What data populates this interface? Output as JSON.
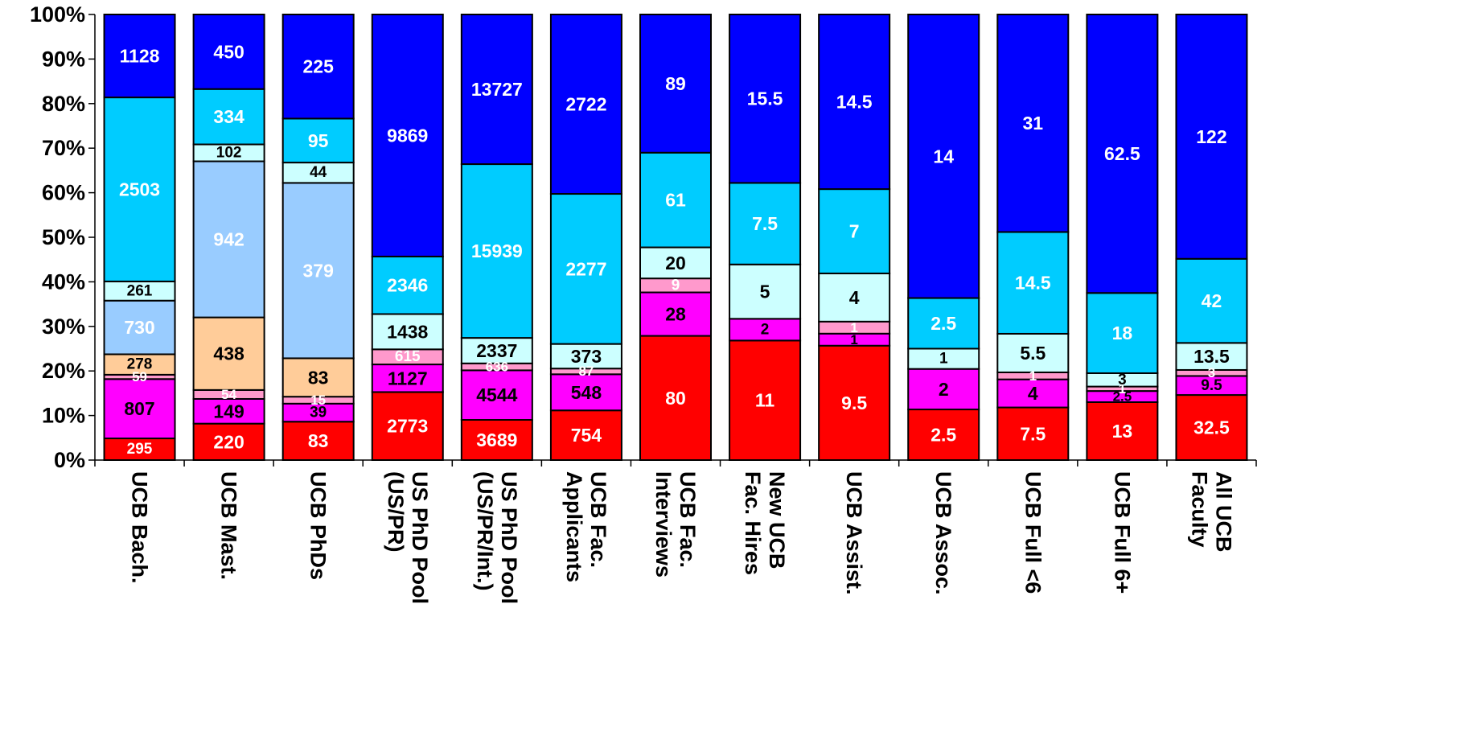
{
  "chart_data": {
    "type": "bar",
    "stacked": "percent",
    "title": "",
    "xlabel": "",
    "ylabel": "",
    "ylim": [
      0,
      100
    ],
    "y_ticks": [
      "0%",
      "10%",
      "20%",
      "30%",
      "40%",
      "50%",
      "60%",
      "70%",
      "80%",
      "90%",
      "100%"
    ],
    "grid": false,
    "legend": "none",
    "categories": [
      [
        "UCB Bach."
      ],
      [
        "UCB Mast."
      ],
      [
        "UCB PhDs"
      ],
      [
        "US PhD Pool",
        "(US/PR)"
      ],
      [
        "US PhD Pool",
        "(US/PR/Int.)"
      ],
      [
        "UCB Fac.",
        "Applicants"
      ],
      [
        "UCB Fac.",
        "Interviews"
      ],
      [
        "New UCB",
        "Fac. Hires"
      ],
      [
        "UCB Assist."
      ],
      [
        "UCB Assoc."
      ],
      [
        "UCB Full <6"
      ],
      [
        "UCB Full 6+"
      ],
      [
        "All UCB",
        "Faculty"
      ]
    ],
    "series": [
      {
        "color": "#ff0000",
        "label_color": "#ffffff",
        "values": [
          295,
          220,
          83,
          2773,
          3689,
          754,
          80,
          11,
          9.5,
          2.5,
          7.5,
          13,
          32.5
        ]
      },
      {
        "color": "#ff00ff",
        "label_color": "#000000",
        "values": [
          807,
          149,
          39,
          1127,
          4544,
          548,
          28,
          2,
          1,
          2,
          4,
          2.5,
          9.5
        ]
      },
      {
        "color": "#ff99cc",
        "label_color": "#ffffff",
        "values": [
          59,
          54,
          15,
          615,
          636,
          87,
          9,
          null,
          1,
          null,
          1,
          1,
          3
        ]
      },
      {
        "color": "#ffcc99",
        "label_color": "#000000",
        "values": [
          278,
          438,
          83,
          null,
          null,
          null,
          null,
          null,
          null,
          null,
          null,
          null,
          null
        ]
      },
      {
        "color": "#99ccff",
        "label_color": "#ffffff",
        "values": [
          730,
          942,
          379,
          null,
          null,
          null,
          null,
          null,
          null,
          null,
          null,
          null,
          null
        ]
      },
      {
        "color": "#ccffff",
        "label_color": "#000000",
        "values": [
          261,
          102,
          44,
          1438,
          2337,
          373,
          20,
          5,
          4,
          1,
          5.5,
          3,
          13.5
        ]
      },
      {
        "color": "#00ccff",
        "label_color": "#ffffff",
        "values": [
          2503,
          334,
          95,
          2346,
          15939,
          2277,
          61,
          7.5,
          7,
          2.5,
          14.5,
          18,
          42
        ]
      },
      {
        "color": "#0000ff",
        "label_color": "#ffffff",
        "values": [
          1128,
          450,
          225,
          9869,
          13727,
          2722,
          89,
          15.5,
          14.5,
          14,
          31,
          62.5,
          122
        ]
      }
    ]
  }
}
